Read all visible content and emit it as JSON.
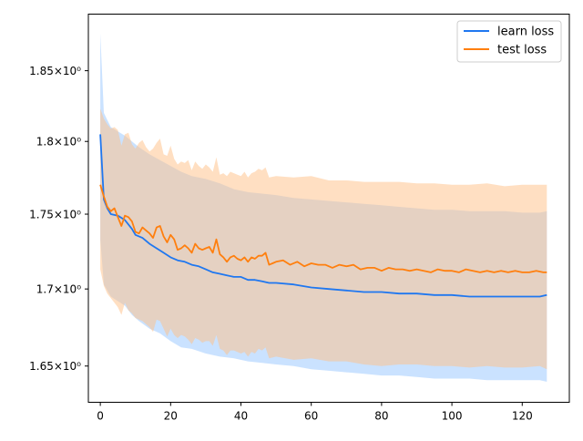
{
  "colors": {
    "learn": "#1f77f0",
    "test": "#ff7f0e",
    "learn_band": "#9ecbff",
    "test_band": "#ffbf86"
  },
  "chart_data": {
    "type": "line",
    "title": "",
    "xlabel": "",
    "ylabel": "",
    "yscale": "log",
    "xlim": [
      -3.4,
      133.4
    ],
    "ylim": [
      1.627,
      1.891
    ],
    "legend_position": "top-right",
    "x_ticks": [
      0,
      20,
      40,
      60,
      80,
      100,
      120
    ],
    "x_tick_labels": [
      "0",
      "20",
      "40",
      "60",
      "80",
      "100",
      "120"
    ],
    "y_ticks": [
      1.65,
      1.7,
      1.75,
      1.8,
      1.85
    ],
    "y_tick_labels": [
      "1.65",
      "1.7",
      "1.75",
      "1.8",
      "1.85"
    ],
    "y_tick_suffix": "×10⁰",
    "series": [
      {
        "name": "learn loss",
        "mean": [
          [
            0,
            1.805
          ],
          [
            1,
            1.76
          ],
          [
            2,
            1.754
          ],
          [
            3,
            1.75
          ],
          [
            5,
            1.749
          ],
          [
            7,
            1.746
          ],
          [
            9,
            1.74
          ],
          [
            10,
            1.736
          ],
          [
            12,
            1.734
          ],
          [
            14,
            1.73
          ],
          [
            16,
            1.727
          ],
          [
            18,
            1.724
          ],
          [
            20,
            1.721
          ],
          [
            22,
            1.719
          ],
          [
            24,
            1.718
          ],
          [
            26,
            1.716
          ],
          [
            28,
            1.715
          ],
          [
            30,
            1.713
          ],
          [
            32,
            1.711
          ],
          [
            34,
            1.71
          ],
          [
            36,
            1.709
          ],
          [
            38,
            1.708
          ],
          [
            40,
            1.708
          ],
          [
            42,
            1.706
          ],
          [
            44,
            1.706
          ],
          [
            46,
            1.705
          ],
          [
            48,
            1.704
          ],
          [
            50,
            1.704
          ],
          [
            55,
            1.703
          ],
          [
            60,
            1.701
          ],
          [
            65,
            1.7
          ],
          [
            70,
            1.699
          ],
          [
            75,
            1.698
          ],
          [
            80,
            1.698
          ],
          [
            85,
            1.697
          ],
          [
            90,
            1.697
          ],
          [
            95,
            1.696
          ],
          [
            100,
            1.696
          ],
          [
            105,
            1.695
          ],
          [
            110,
            1.695
          ],
          [
            115,
            1.695
          ],
          [
            120,
            1.695
          ],
          [
            125,
            1.695
          ],
          [
            127,
            1.696
          ]
        ],
        "band": [
          [
            0,
            1.733,
            1.877
          ],
          [
            1,
            1.703,
            1.82
          ],
          [
            2,
            1.699,
            1.815
          ],
          [
            3,
            1.695,
            1.81
          ],
          [
            5,
            1.692,
            1.807
          ],
          [
            7,
            1.689,
            1.804
          ],
          [
            9,
            1.683,
            1.8
          ],
          [
            11,
            1.679,
            1.796
          ],
          [
            14,
            1.674,
            1.791
          ],
          [
            17,
            1.671,
            1.787
          ],
          [
            20,
            1.666,
            1.783
          ],
          [
            23,
            1.662,
            1.779
          ],
          [
            26,
            1.661,
            1.776
          ],
          [
            30,
            1.658,
            1.774
          ],
          [
            34,
            1.656,
            1.771
          ],
          [
            38,
            1.655,
            1.767
          ],
          [
            42,
            1.653,
            1.765
          ],
          [
            46,
            1.652,
            1.764
          ],
          [
            50,
            1.651,
            1.763
          ],
          [
            55,
            1.65,
            1.761
          ],
          [
            60,
            1.648,
            1.76
          ],
          [
            65,
            1.647,
            1.759
          ],
          [
            70,
            1.646,
            1.758
          ],
          [
            75,
            1.645,
            1.757
          ],
          [
            80,
            1.644,
            1.756
          ],
          [
            85,
            1.644,
            1.755
          ],
          [
            90,
            1.643,
            1.754
          ],
          [
            95,
            1.642,
            1.753
          ],
          [
            100,
            1.642,
            1.753
          ],
          [
            105,
            1.642,
            1.752
          ],
          [
            110,
            1.641,
            1.752
          ],
          [
            115,
            1.641,
            1.752
          ],
          [
            120,
            1.641,
            1.751
          ],
          [
            125,
            1.641,
            1.751
          ],
          [
            127,
            1.64,
            1.752
          ]
        ]
      },
      {
        "name": "test loss",
        "mean": [
          [
            0,
            1.77
          ],
          [
            1,
            1.762
          ],
          [
            2,
            1.755
          ],
          [
            3,
            1.752
          ],
          [
            4,
            1.754
          ],
          [
            5,
            1.748
          ],
          [
            6,
            1.742
          ],
          [
            7,
            1.749
          ],
          [
            8,
            1.748
          ],
          [
            9,
            1.745
          ],
          [
            10,
            1.738
          ],
          [
            11,
            1.737
          ],
          [
            12,
            1.741
          ],
          [
            13,
            1.739
          ],
          [
            14,
            1.737
          ],
          [
            15,
            1.734
          ],
          [
            16,
            1.741
          ],
          [
            17,
            1.742
          ],
          [
            18,
            1.735
          ],
          [
            19,
            1.731
          ],
          [
            20,
            1.736
          ],
          [
            21,
            1.733
          ],
          [
            22,
            1.726
          ],
          [
            23,
            1.727
          ],
          [
            24,
            1.729
          ],
          [
            25,
            1.727
          ],
          [
            26,
            1.724
          ],
          [
            27,
            1.73
          ],
          [
            28,
            1.727
          ],
          [
            29,
            1.726
          ],
          [
            30,
            1.727
          ],
          [
            31,
            1.728
          ],
          [
            32,
            1.724
          ],
          [
            33,
            1.733
          ],
          [
            34,
            1.723
          ],
          [
            35,
            1.721
          ],
          [
            36,
            1.718
          ],
          [
            37,
            1.721
          ],
          [
            38,
            1.722
          ],
          [
            39,
            1.72
          ],
          [
            40,
            1.719
          ],
          [
            41,
            1.721
          ],
          [
            42,
            1.718
          ],
          [
            43,
            1.721
          ],
          [
            44,
            1.72
          ],
          [
            45,
            1.722
          ],
          [
            46,
            1.722
          ],
          [
            47,
            1.724
          ],
          [
            48,
            1.716
          ],
          [
            49,
            1.717
          ],
          [
            50,
            1.718
          ],
          [
            52,
            1.719
          ],
          [
            54,
            1.716
          ],
          [
            56,
            1.718
          ],
          [
            58,
            1.715
          ],
          [
            60,
            1.717
          ],
          [
            62,
            1.716
          ],
          [
            64,
            1.716
          ],
          [
            66,
            1.714
          ],
          [
            68,
            1.716
          ],
          [
            70,
            1.715
          ],
          [
            72,
            1.716
          ],
          [
            74,
            1.713
          ],
          [
            76,
            1.714
          ],
          [
            78,
            1.714
          ],
          [
            80,
            1.712
          ],
          [
            82,
            1.714
          ],
          [
            84,
            1.713
          ],
          [
            86,
            1.713
          ],
          [
            88,
            1.712
          ],
          [
            90,
            1.713
          ],
          [
            92,
            1.712
          ],
          [
            94,
            1.711
          ],
          [
            96,
            1.713
          ],
          [
            98,
            1.712
          ],
          [
            100,
            1.712
          ],
          [
            102,
            1.711
          ],
          [
            104,
            1.713
          ],
          [
            106,
            1.712
          ],
          [
            108,
            1.711
          ],
          [
            110,
            1.712
          ],
          [
            112,
            1.711
          ],
          [
            114,
            1.712
          ],
          [
            116,
            1.711
          ],
          [
            118,
            1.712
          ],
          [
            120,
            1.711
          ],
          [
            122,
            1.711
          ],
          [
            124,
            1.712
          ],
          [
            126,
            1.711
          ],
          [
            127,
            1.711
          ]
        ],
        "band": [
          [
            0,
            1.713,
            1.823
          ],
          [
            1,
            1.702,
            1.816
          ],
          [
            2,
            1.697,
            1.812
          ],
          [
            3,
            1.694,
            1.809
          ],
          [
            4,
            1.691,
            1.81
          ],
          [
            5,
            1.688,
            1.808
          ],
          [
            6,
            1.683,
            1.797
          ],
          [
            7,
            1.691,
            1.805
          ],
          [
            8,
            1.686,
            1.806
          ],
          [
            9,
            1.684,
            1.798
          ],
          [
            10,
            1.681,
            1.795
          ],
          [
            11,
            1.68,
            1.799
          ],
          [
            12,
            1.679,
            1.801
          ],
          [
            13,
            1.677,
            1.796
          ],
          [
            14,
            1.675,
            1.793
          ],
          [
            15,
            1.672,
            1.795
          ],
          [
            16,
            1.68,
            1.799
          ],
          [
            17,
            1.679,
            1.802
          ],
          [
            18,
            1.674,
            1.791
          ],
          [
            19,
            1.669,
            1.79
          ],
          [
            20,
            1.674,
            1.797
          ],
          [
            21,
            1.67,
            1.788
          ],
          [
            22,
            1.668,
            1.784
          ],
          [
            23,
            1.67,
            1.786
          ],
          [
            24,
            1.669,
            1.785
          ],
          [
            25,
            1.667,
            1.787
          ],
          [
            26,
            1.664,
            1.78
          ],
          [
            27,
            1.668,
            1.786
          ],
          [
            28,
            1.667,
            1.783
          ],
          [
            29,
            1.665,
            1.781
          ],
          [
            30,
            1.666,
            1.784
          ],
          [
            31,
            1.666,
            1.782
          ],
          [
            32,
            1.663,
            1.779
          ],
          [
            33,
            1.67,
            1.789
          ],
          [
            34,
            1.661,
            1.777
          ],
          [
            35,
            1.66,
            1.778
          ],
          [
            36,
            1.657,
            1.776
          ],
          [
            37,
            1.66,
            1.779
          ],
          [
            38,
            1.66,
            1.778
          ],
          [
            39,
            1.659,
            1.777
          ],
          [
            40,
            1.658,
            1.776
          ],
          [
            41,
            1.659,
            1.779
          ],
          [
            42,
            1.656,
            1.775
          ],
          [
            43,
            1.659,
            1.778
          ],
          [
            44,
            1.658,
            1.779
          ],
          [
            45,
            1.661,
            1.781
          ],
          [
            46,
            1.66,
            1.78
          ],
          [
            47,
            1.662,
            1.782
          ],
          [
            48,
            1.655,
            1.775
          ],
          [
            50,
            1.656,
            1.776
          ],
          [
            55,
            1.654,
            1.775
          ],
          [
            60,
            1.655,
            1.776
          ],
          [
            65,
            1.653,
            1.773
          ],
          [
            70,
            1.653,
            1.773
          ],
          [
            75,
            1.651,
            1.772
          ],
          [
            80,
            1.65,
            1.772
          ],
          [
            85,
            1.651,
            1.772
          ],
          [
            90,
            1.651,
            1.771
          ],
          [
            95,
            1.65,
            1.771
          ],
          [
            100,
            1.65,
            1.77
          ],
          [
            105,
            1.649,
            1.77
          ],
          [
            110,
            1.65,
            1.771
          ],
          [
            115,
            1.649,
            1.769
          ],
          [
            120,
            1.649,
            1.77
          ],
          [
            125,
            1.65,
            1.77
          ],
          [
            127,
            1.648,
            1.77
          ]
        ]
      }
    ]
  }
}
